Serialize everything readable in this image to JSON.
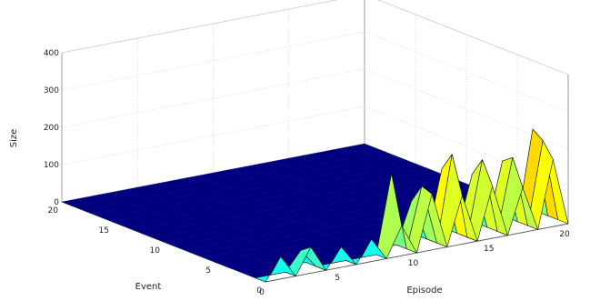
{
  "chart_data": {
    "type": "surface3d",
    "title": "",
    "xlabel": "Episode",
    "ylabel": "Event",
    "zlabel": "Size",
    "x_ticks": [
      "0",
      "5",
      "10",
      "15",
      "20"
    ],
    "y_ticks": [
      "0",
      "5",
      "10",
      "15",
      "20"
    ],
    "z_ticks": [
      "0",
      "100",
      "200",
      "300",
      "400"
    ],
    "xlim": [
      0,
      20
    ],
    "ylim": [
      0,
      20
    ],
    "zlim": [
      0,
      400
    ],
    "grid": true,
    "colormap": "jet",
    "series": [
      {
        "values": [
          0,
          60,
          0,
          70,
          0,
          55,
          0,
          60,
          0,
          80,
          0,
          150,
          0,
          130,
          0,
          140,
          0,
          120,
          0,
          180,
          0
        ]
      },
      {
        "values": [
          0,
          0,
          0,
          50,
          0,
          0,
          0,
          0,
          0,
          210,
          0,
          160,
          0,
          230,
          0,
          200,
          0,
          190,
          0,
          220,
          0
        ]
      },
      {
        "values": [
          0,
          0,
          0,
          0,
          0,
          0,
          0,
          0,
          0,
          0,
          0,
          110,
          0,
          180,
          0,
          150,
          0,
          170,
          0,
          240,
          0
        ]
      }
    ]
  }
}
